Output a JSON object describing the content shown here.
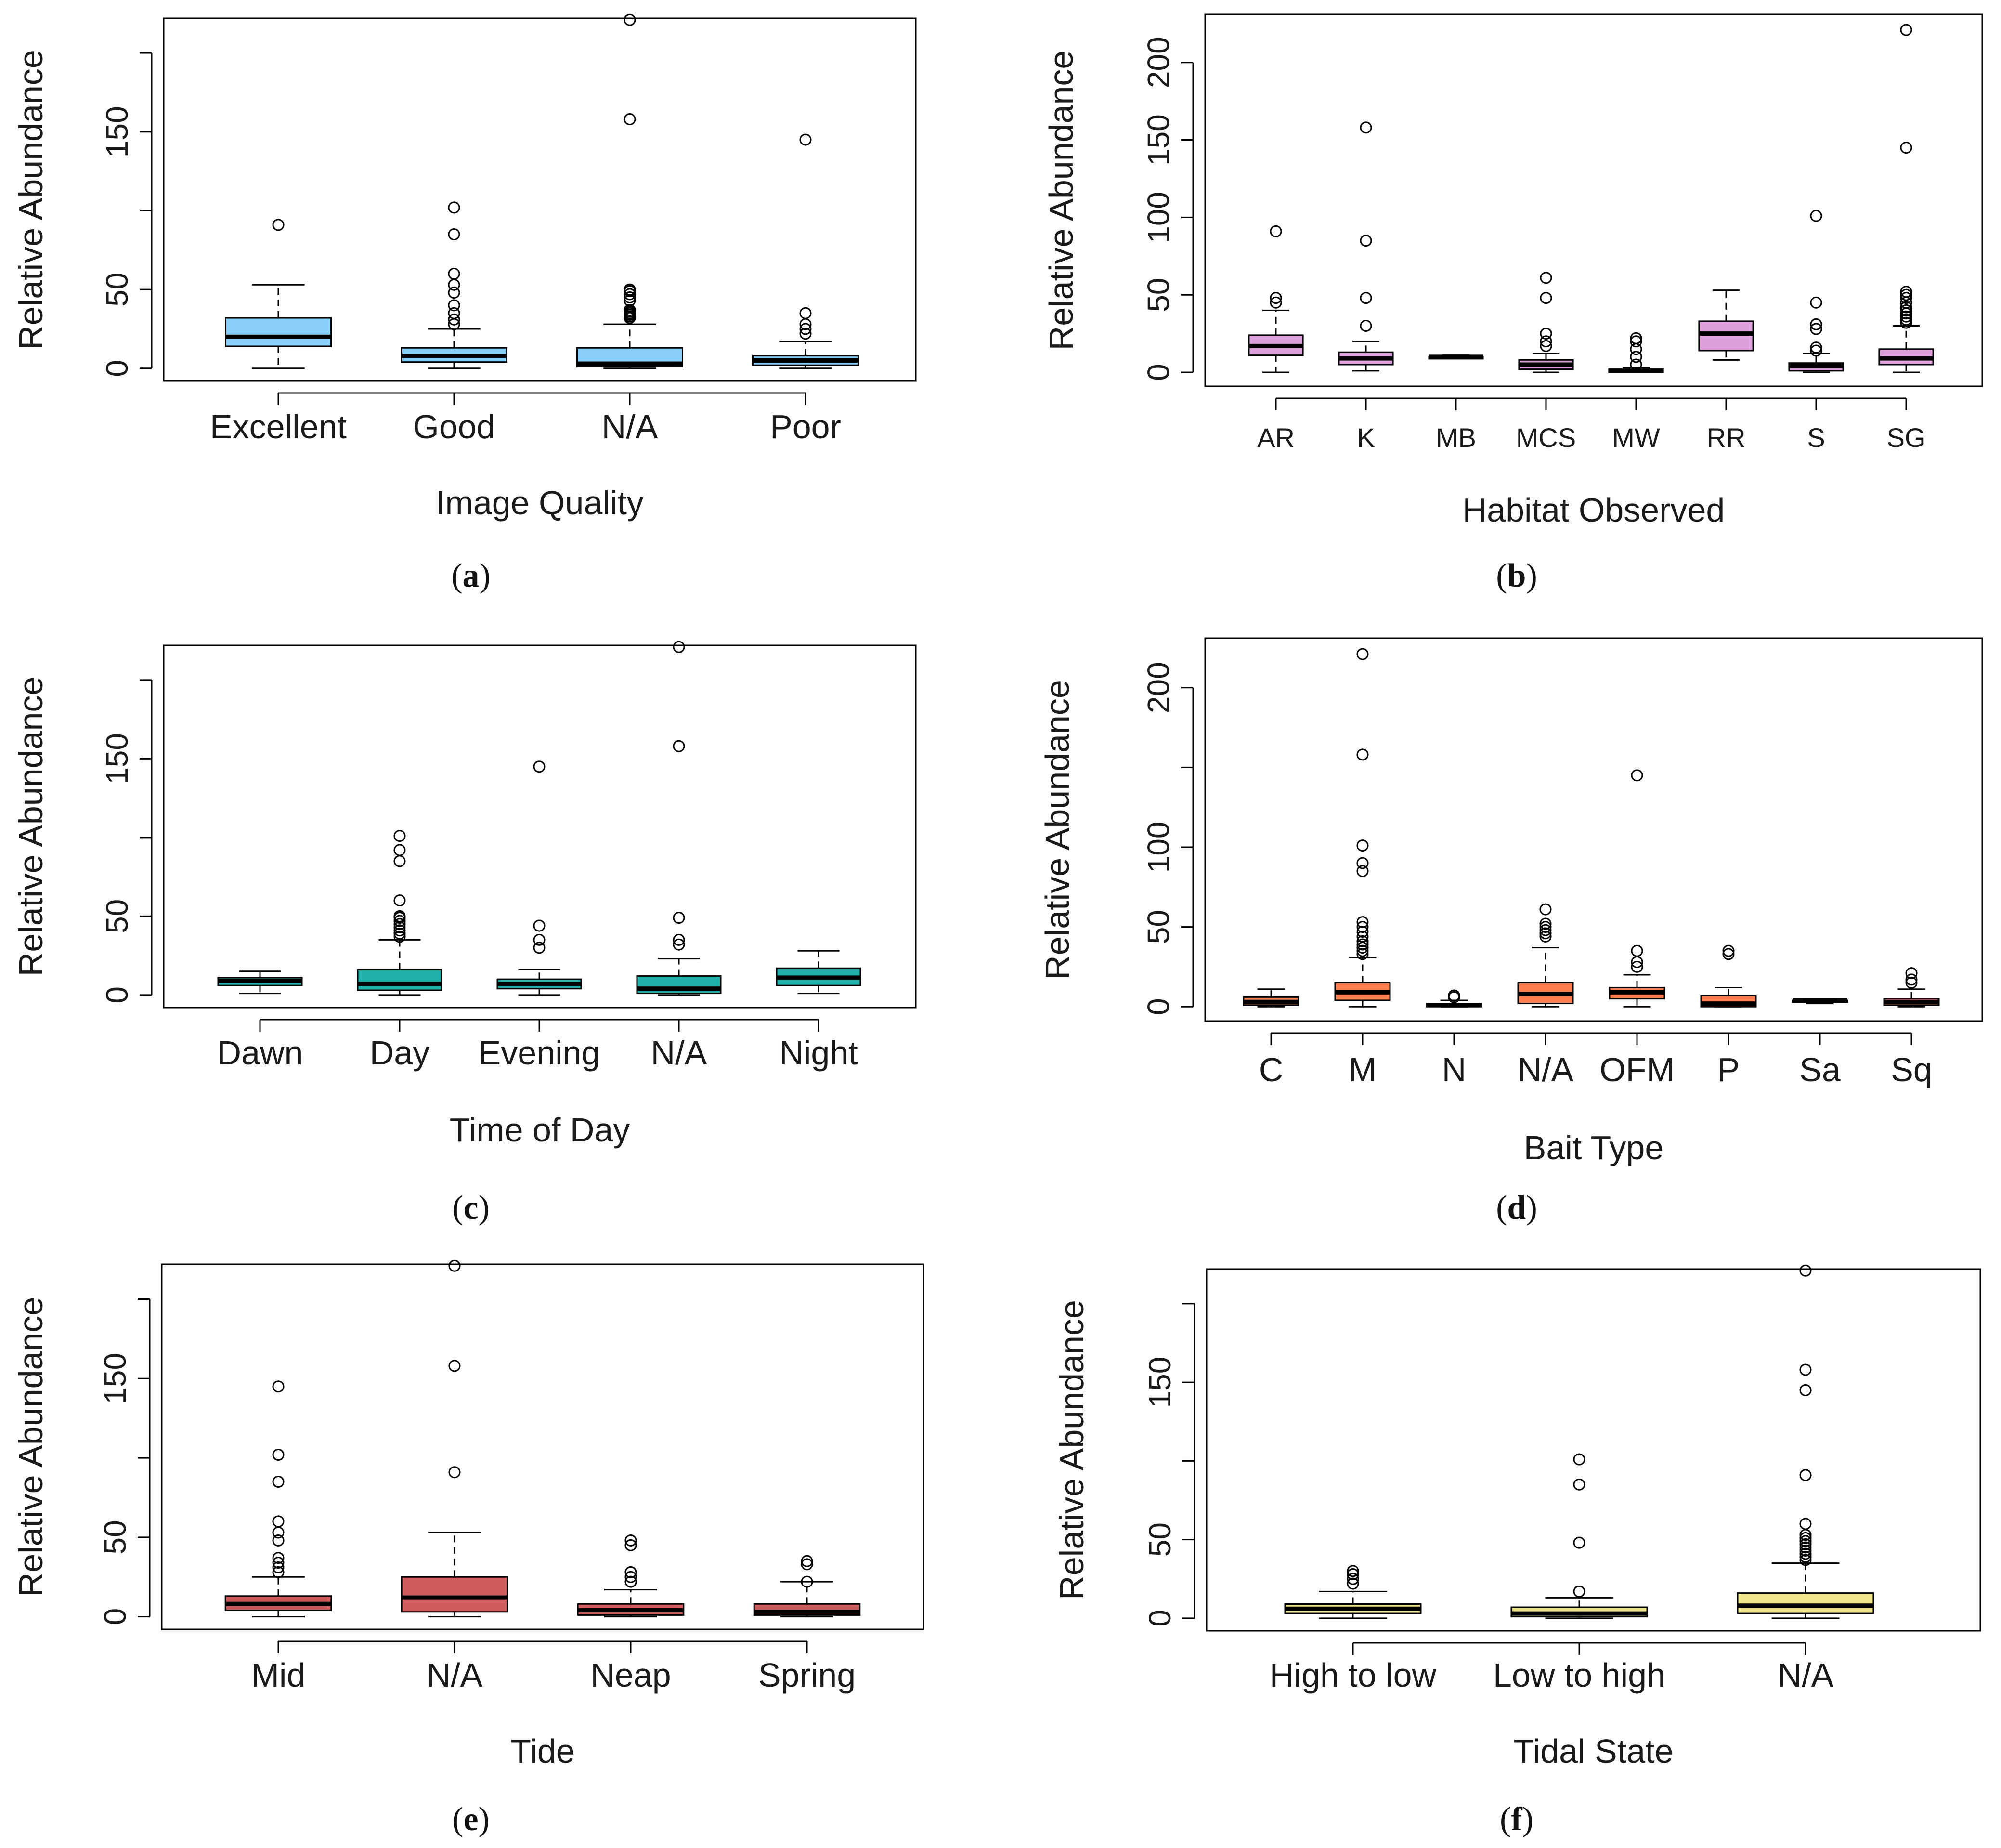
{
  "figure": {
    "panels_order": [
      "a",
      "b",
      "c",
      "d",
      "e",
      "f"
    ]
  },
  "chart_data": [
    {
      "panel": "a",
      "caption": "(a)",
      "caption_letter": "a",
      "type": "boxplot",
      "xlabel": "Image Quality",
      "ylabel": "Relative Abundance",
      "ylim": [
        -8,
        222
      ],
      "yticks": [
        "0",
        "50",
        "150"
      ],
      "ytick_values": [
        0,
        50,
        150
      ],
      "minor_ticks": [
        100,
        200
      ],
      "fill": "#87CEFA",
      "categories": [
        "Excellent",
        "Good",
        "N/A",
        "Poor"
      ],
      "boxes": [
        {
          "min": 0,
          "q1": 14,
          "median": 20,
          "q3": 32,
          "max": 53,
          "outliers": [
            91
          ]
        },
        {
          "min": 0,
          "q1": 4,
          "median": 8,
          "q3": 13,
          "max": 25,
          "outliers": [
            28,
            31,
            35,
            40,
            48,
            53,
            60,
            85,
            102
          ]
        },
        {
          "min": 0,
          "q1": 1,
          "median": 3,
          "q3": 13,
          "max": 28,
          "outliers": [
            32,
            33,
            34,
            35,
            36,
            37,
            43,
            45,
            47,
            49,
            50,
            158,
            221
          ]
        },
        {
          "min": 0,
          "q1": 2,
          "median": 5,
          "q3": 8,
          "max": 17,
          "outliers": [
            22,
            25,
            28,
            35,
            145
          ]
        }
      ]
    },
    {
      "panel": "b",
      "caption": "(b)",
      "caption_letter": "b",
      "type": "boxplot",
      "xlabel": "Habitat Observed",
      "ylabel": "Relative Abundance",
      "ylim": [
        -9,
        231
      ],
      "yticks": [
        "0",
        "50",
        "100",
        "150",
        "200"
      ],
      "ytick_values": [
        0,
        50,
        100,
        150,
        200
      ],
      "minor_ticks": [],
      "fill": "#DDA0DD",
      "categories": [
        "AR",
        "K",
        "MB",
        "MCS",
        "MW",
        "RR",
        "S",
        "SG"
      ],
      "boxes": [
        {
          "min": 0,
          "q1": 11,
          "median": 17,
          "q3": 24,
          "max": 40,
          "outliers": [
            45,
            48,
            91
          ]
        },
        {
          "min": 1,
          "q1": 5,
          "median": 9,
          "q3": 13,
          "max": 20,
          "outliers": [
            30,
            48,
            85,
            158
          ]
        },
        {
          "min": 9,
          "q1": 9,
          "median": 10,
          "q3": 10,
          "max": 11,
          "outliers": []
        },
        {
          "min": 0,
          "q1": 2,
          "median": 5,
          "q3": 8,
          "max": 12,
          "outliers": [
            17,
            20,
            25,
            48,
            61
          ]
        },
        {
          "min": 0,
          "q1": 0,
          "median": 1,
          "q3": 2,
          "max": 3,
          "outliers": [
            5,
            10,
            15,
            20,
            22
          ]
        },
        {
          "min": 8,
          "q1": 14,
          "median": 25,
          "q3": 33,
          "max": 53,
          "outliers": []
        },
        {
          "min": 0,
          "q1": 1,
          "median": 4,
          "q3": 6,
          "max": 12,
          "outliers": [
            14,
            16,
            28,
            31,
            45,
            101
          ]
        },
        {
          "min": 0,
          "q1": 5,
          "median": 9,
          "q3": 15,
          "max": 30,
          "outliers": [
            32,
            34,
            36,
            38,
            40,
            42,
            45,
            48,
            50,
            52,
            145,
            221
          ]
        }
      ]
    },
    {
      "panel": "c",
      "caption": "(c)",
      "caption_letter": "c",
      "type": "boxplot",
      "xlabel": "Time of Day",
      "ylabel": "Relative Abundance",
      "ylim": [
        -8,
        222
      ],
      "yticks": [
        "0",
        "50",
        "150"
      ],
      "ytick_values": [
        0,
        50,
        150
      ],
      "minor_ticks": [
        100,
        200
      ],
      "fill": "#20B2AA",
      "categories": [
        "Dawn",
        "Day",
        "Evening",
        "N/A",
        "Night"
      ],
      "boxes": [
        {
          "min": 1,
          "q1": 6,
          "median": 9,
          "q3": 11,
          "max": 15,
          "outliers": []
        },
        {
          "min": 0,
          "q1": 3,
          "median": 7,
          "q3": 16,
          "max": 35,
          "outliers": [
            37,
            39,
            41,
            43,
            45,
            47,
            49,
            50,
            60,
            85,
            92,
            101
          ]
        },
        {
          "min": 0,
          "q1": 4,
          "median": 7,
          "q3": 10,
          "max": 16,
          "outliers": [
            30,
            35,
            44,
            145
          ]
        },
        {
          "min": 0,
          "q1": 1,
          "median": 4,
          "q3": 12,
          "max": 23,
          "outliers": [
            32,
            35,
            49,
            158,
            221
          ]
        },
        {
          "min": 1,
          "q1": 6,
          "median": 11,
          "q3": 17,
          "max": 28,
          "outliers": []
        }
      ]
    },
    {
      "panel": "d",
      "caption": "(d)",
      "caption_letter": "d",
      "type": "boxplot",
      "xlabel": "Bait Type",
      "ylabel": "Relative Abundance",
      "ylim": [
        -9,
        231
      ],
      "yticks": [
        "0",
        "50",
        "100",
        "200"
      ],
      "ytick_values": [
        0,
        50,
        100,
        200
      ],
      "minor_ticks": [
        150
      ],
      "fill": "#FF7F50",
      "categories": [
        "C",
        "M",
        "N",
        "N/A",
        "OFM",
        "P",
        "Sa",
        "Sq"
      ],
      "boxes": [
        {
          "min": 0,
          "q1": 1,
          "median": 3,
          "q3": 6,
          "max": 11,
          "outliers": []
        },
        {
          "min": 0,
          "q1": 4,
          "median": 9,
          "q3": 15,
          "max": 31,
          "outliers": [
            33,
            35,
            37,
            39,
            41,
            44,
            47,
            50,
            53,
            85,
            90,
            101,
            158,
            221
          ]
        },
        {
          "min": 0,
          "q1": 0,
          "median": 1,
          "q3": 2,
          "max": 4,
          "outliers": [
            6,
            7
          ]
        },
        {
          "min": 0,
          "q1": 2,
          "median": 8,
          "q3": 15,
          "max": 37,
          "outliers": [
            44,
            46,
            48,
            50,
            52,
            61
          ]
        },
        {
          "min": 0,
          "q1": 5,
          "median": 9,
          "q3": 12,
          "max": 20,
          "outliers": [
            25,
            28,
            35,
            145
          ]
        },
        {
          "min": 0,
          "q1": 0,
          "median": 2,
          "q3": 7,
          "max": 12,
          "outliers": [
            33,
            35
          ]
        },
        {
          "min": 2,
          "q1": 3,
          "median": 4,
          "q3": 4,
          "max": 5,
          "outliers": []
        },
        {
          "min": 0,
          "q1": 1,
          "median": 3,
          "q3": 5,
          "max": 11,
          "outliers": [
            15,
            17,
            21
          ]
        }
      ]
    },
    {
      "panel": "e",
      "caption": "(e)",
      "caption_letter": "e",
      "type": "boxplot",
      "xlabel": "Tide",
      "ylabel": "Relative Abundance",
      "ylim": [
        -8,
        222
      ],
      "yticks": [
        "0",
        "50",
        "150"
      ],
      "ytick_values": [
        0,
        50,
        150
      ],
      "minor_ticks": [
        100,
        200
      ],
      "fill": "#CD5C5C",
      "categories": [
        "Mid",
        "N/A",
        "Neap",
        "Spring"
      ],
      "boxes": [
        {
          "min": 0,
          "q1": 4,
          "median": 8,
          "q3": 13,
          "max": 25,
          "outliers": [
            28,
            31,
            34,
            37,
            48,
            53,
            60,
            85,
            102,
            145
          ]
        },
        {
          "min": 0,
          "q1": 3,
          "median": 12,
          "q3": 25,
          "max": 53,
          "outliers": [
            91,
            158,
            221
          ]
        },
        {
          "min": 0,
          "q1": 1,
          "median": 4,
          "q3": 8,
          "max": 17,
          "outliers": [
            22,
            25,
            28,
            45,
            48
          ]
        },
        {
          "min": 0,
          "q1": 1,
          "median": 3,
          "q3": 8,
          "max": 22,
          "outliers": [
            22,
            33,
            35
          ]
        }
      ]
    },
    {
      "panel": "f",
      "caption": "(f)",
      "caption_letter": "f",
      "type": "boxplot",
      "xlabel": "Tidal State",
      "ylabel": "Relative Abundance",
      "ylim": [
        -8,
        222
      ],
      "yticks": [
        "0",
        "50",
        "150"
      ],
      "ytick_values": [
        0,
        50,
        150
      ],
      "minor_ticks": [
        100,
        200
      ],
      "fill": "#F0E68C",
      "categories": [
        "High to low",
        "Low to high",
        "N/A"
      ],
      "boxes": [
        {
          "min": 0,
          "q1": 3,
          "median": 6,
          "q3": 9,
          "max": 17,
          "outliers": [
            22,
            25,
            28,
            30
          ]
        },
        {
          "min": 0,
          "q1": 1,
          "median": 3,
          "q3": 7,
          "max": 13,
          "outliers": [
            17,
            48,
            85,
            101
          ]
        },
        {
          "min": 0,
          "q1": 3,
          "median": 8,
          "q3": 16,
          "max": 35,
          "outliers": [
            37,
            39,
            41,
            43,
            45,
            47,
            49,
            51,
            53,
            60,
            91,
            145,
            158,
            221
          ]
        }
      ]
    }
  ]
}
